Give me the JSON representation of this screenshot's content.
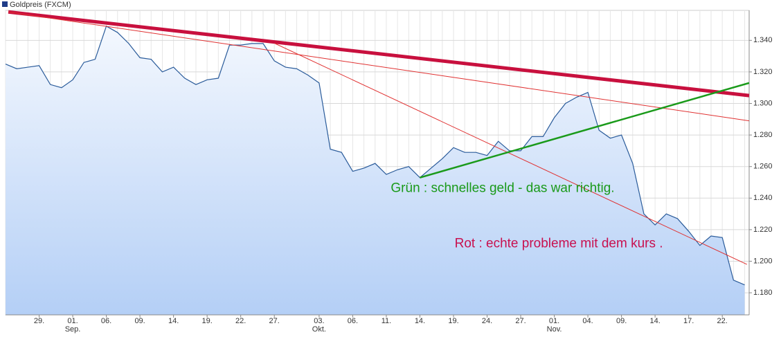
{
  "chart_data": {
    "type": "area",
    "legend": "Goldpreis (FXCM)",
    "legend_color": "#1f3c88",
    "color": "#2a5b9a",
    "fill_top": "#f4f8fe",
    "fill_bottom": "#b4cff6",
    "categories": [
      null,
      null,
      null,
      "29.",
      null,
      null,
      "01.",
      null,
      null,
      "06.",
      null,
      null,
      "09.",
      null,
      null,
      "14.",
      null,
      null,
      "19.",
      null,
      null,
      "22.",
      null,
      null,
      "27.",
      null,
      null,
      null,
      "03.",
      null,
      null,
      "06.",
      null,
      null,
      "11.",
      null,
      null,
      "14.",
      null,
      null,
      "19.",
      null,
      null,
      "24.",
      null,
      null,
      "27.",
      null,
      null,
      "01.",
      null,
      null,
      "04.",
      null,
      null,
      "09.",
      null,
      null,
      "14.",
      null,
      null,
      "17.",
      null,
      null,
      "22.",
      null,
      null
    ],
    "month_labels": [
      {
        "category": 6,
        "label": "Sep."
      },
      {
        "category": 28,
        "label": "Okt."
      },
      {
        "category": 49,
        "label": "Nov."
      }
    ],
    "values": [
      1.325,
      1.322,
      1.323,
      1.324,
      1.312,
      1.31,
      1.315,
      1.326,
      1.328,
      1.349,
      1.345,
      1.338,
      1.329,
      1.328,
      1.32,
      1.323,
      1.316,
      1.312,
      1.315,
      1.316,
      1.337,
      1.337,
      1.338,
      1.338,
      1.327,
      1.323,
      1.322,
      1.318,
      1.313,
      1.271,
      1.269,
      1.257,
      1.259,
      1.262,
      1.255,
      1.258,
      1.26,
      1.253,
      1.259,
      1.265,
      1.272,
      1.269,
      1.269,
      1.267,
      1.276,
      1.27,
      1.27,
      1.279,
      1.279,
      1.291,
      1.3,
      1.304,
      1.307,
      1.283,
      1.278,
      1.28,
      1.262,
      1.23,
      1.223,
      1.23,
      1.227,
      1.219,
      1.21,
      1.216,
      1.215,
      1.188,
      1.185
    ],
    "ylim": [
      1.166,
      1.359
    ],
    "yticks": [
      {
        "value": 1.18,
        "label": "1.180"
      },
      {
        "value": 1.2,
        "label": "1.200"
      },
      {
        "value": 1.22,
        "label": "1.220"
      },
      {
        "value": 1.24,
        "label": "1.240"
      },
      {
        "value": 1.26,
        "label": "1.260"
      },
      {
        "value": 1.28,
        "label": "1.280"
      },
      {
        "value": 1.3,
        "label": "1.300"
      },
      {
        "value": 1.32,
        "label": "1.320"
      },
      {
        "value": 1.34,
        "label": "1.340"
      }
    ],
    "grid": true,
    "trend_lines": [
      {
        "color": "#c8103e",
        "width": 5,
        "x": [
          0.25,
          66.4
        ],
        "y": [
          1.358,
          1.305
        ]
      },
      {
        "color": "#e03030",
        "width": 1,
        "x": [
          0.25,
          66.4
        ],
        "y": [
          1.358,
          1.289
        ]
      },
      {
        "color": "#e03030",
        "width": 1,
        "x": [
          24.06,
          66.2
        ],
        "y": [
          1.338,
          1.198
        ]
      },
      {
        "color": "#1a9a1a",
        "width": 2.5,
        "x": [
          37,
          66.4
        ],
        "y": [
          1.253,
          1.313
        ]
      }
    ],
    "annotations": [
      {
        "text": "Grün : schnelles geld - das war richtig.",
        "color": "#1a9a1a",
        "x": 34.4,
        "y": 1.246
      },
      {
        "text": "Rot : echte probleme mit dem kurs .",
        "color": "#c8104f",
        "x": 40.1,
        "y": 1.211
      }
    ]
  }
}
